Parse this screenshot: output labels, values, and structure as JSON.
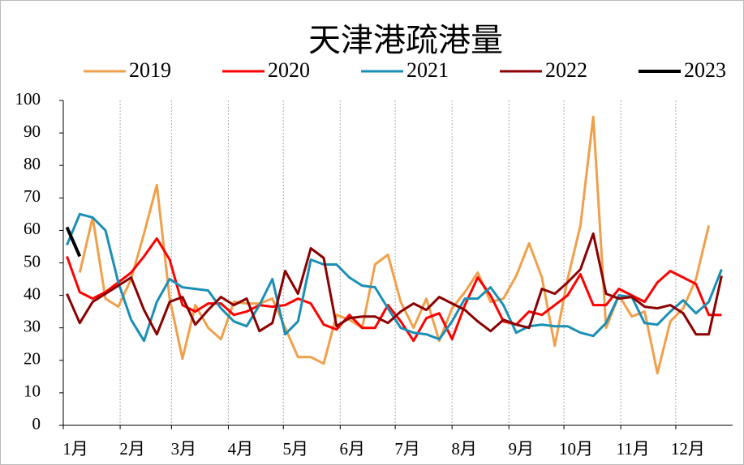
{
  "chart_data": {
    "type": "line",
    "title": "天津港疏港量",
    "x": [
      3,
      10,
      17,
      24,
      31,
      38,
      45,
      52,
      59,
      66,
      73,
      80,
      87,
      94,
      101,
      108,
      115,
      122,
      129,
      136,
      143,
      150,
      157,
      164,
      171,
      178,
      185,
      192,
      199,
      206,
      213,
      220,
      227,
      234,
      241,
      248,
      255,
      262,
      269,
      276,
      283,
      290,
      297,
      304,
      311,
      318,
      325,
      332,
      339,
      346,
      353,
      360
    ],
    "xlim": [
      1,
      366
    ],
    "xticks": [
      {
        "value": 1,
        "label": "1月"
      },
      {
        "value": 32,
        "label": "2月"
      },
      {
        "value": 60,
        "label": "3月"
      },
      {
        "value": 91,
        "label": "4月"
      },
      {
        "value": 121,
        "label": "5月"
      },
      {
        "value": 152,
        "label": "6月"
      },
      {
        "value": 182,
        "label": "7月"
      },
      {
        "value": 213,
        "label": "8月"
      },
      {
        "value": 244,
        "label": "9月"
      },
      {
        "value": 274,
        "label": "10月"
      },
      {
        "value": 305,
        "label": "11月"
      },
      {
        "value": 335,
        "label": "12月"
      }
    ],
    "ylim": [
      0,
      100
    ],
    "yticks": [
      0,
      10,
      20,
      30,
      40,
      50,
      60,
      70,
      80,
      90,
      100
    ],
    "xgrid": true,
    "series": [
      {
        "name": "2019",
        "color": "#f0a04b",
        "values": [
          null,
          47,
          64,
          39,
          36.5,
          45,
          59,
          74,
          39,
          20.5,
          37,
          30,
          26.5,
          38,
          37.5,
          37.5,
          39,
          30,
          21,
          21,
          19,
          34,
          32.5,
          30,
          49.5,
          52.5,
          38,
          30,
          39,
          26,
          36,
          41,
          47,
          38,
          39,
          46,
          56,
          45.5,
          24.5,
          45,
          61.5,
          95,
          30,
          40,
          33.5,
          35,
          16,
          32,
          36,
          45,
          61.5,
          null
        ]
      },
      {
        "name": "2020",
        "color": "#ff0000",
        "values": [
          52,
          41,
          39,
          41,
          44,
          47,
          52,
          57.5,
          51,
          37,
          35,
          37.5,
          37.5,
          34,
          35,
          37,
          36.5,
          37,
          39,
          37.5,
          31,
          29.5,
          34,
          30,
          30,
          37,
          32,
          26,
          33,
          34.5,
          26.5,
          37,
          45.5,
          40,
          32,
          31,
          35,
          34,
          37,
          40,
          46.5,
          37,
          37,
          42,
          40,
          38,
          44,
          47.5,
          45.5,
          43.5,
          34,
          34
        ]
      },
      {
        "name": "2021",
        "color": "#1a8fb5",
        "values": [
          55.5,
          65,
          64,
          60,
          44,
          32.5,
          26,
          38,
          45,
          42.5,
          42,
          41.5,
          36,
          32,
          30.5,
          37,
          45,
          28,
          32,
          51,
          49.5,
          49.5,
          45.5,
          43,
          42.5,
          36,
          30,
          28.5,
          28,
          26.5,
          32,
          39,
          39,
          42.5,
          37,
          28.5,
          30.5,
          31,
          30.5,
          30.5,
          28.5,
          27.5,
          31.5,
          40,
          39.5,
          31.5,
          31,
          35,
          38.5,
          34.5,
          38,
          48
        ]
      },
      {
        "name": "2022",
        "color": "#8b0000",
        "values": [
          40.5,
          31.5,
          38,
          40.5,
          43,
          45.5,
          35.5,
          28,
          38,
          39.5,
          31,
          35.5,
          39.5,
          37,
          39,
          29,
          31.5,
          47.5,
          40.5,
          54.5,
          51.5,
          30.5,
          33,
          33.5,
          33.5,
          31.5,
          35,
          37.5,
          35.5,
          39.5,
          37.5,
          35.5,
          32,
          29,
          32.5,
          31,
          30,
          42,
          40.5,
          44,
          48,
          59,
          40.5,
          39,
          39.5,
          36.5,
          36,
          37,
          34.5,
          28,
          28,
          46
        ]
      },
      {
        "name": "2023",
        "color": "#000000",
        "values": [
          61,
          52,
          null,
          null,
          null,
          null,
          null,
          null,
          null,
          null,
          null,
          null,
          null,
          null,
          null,
          null,
          null,
          null,
          null,
          null,
          null,
          null,
          null,
          null,
          null,
          null,
          null,
          null,
          null,
          null,
          null,
          null,
          null,
          null,
          null,
          null,
          null,
          null,
          null,
          null,
          null,
          null,
          null,
          null,
          null,
          null,
          null,
          null,
          null,
          null,
          null,
          null
        ]
      }
    ]
  }
}
